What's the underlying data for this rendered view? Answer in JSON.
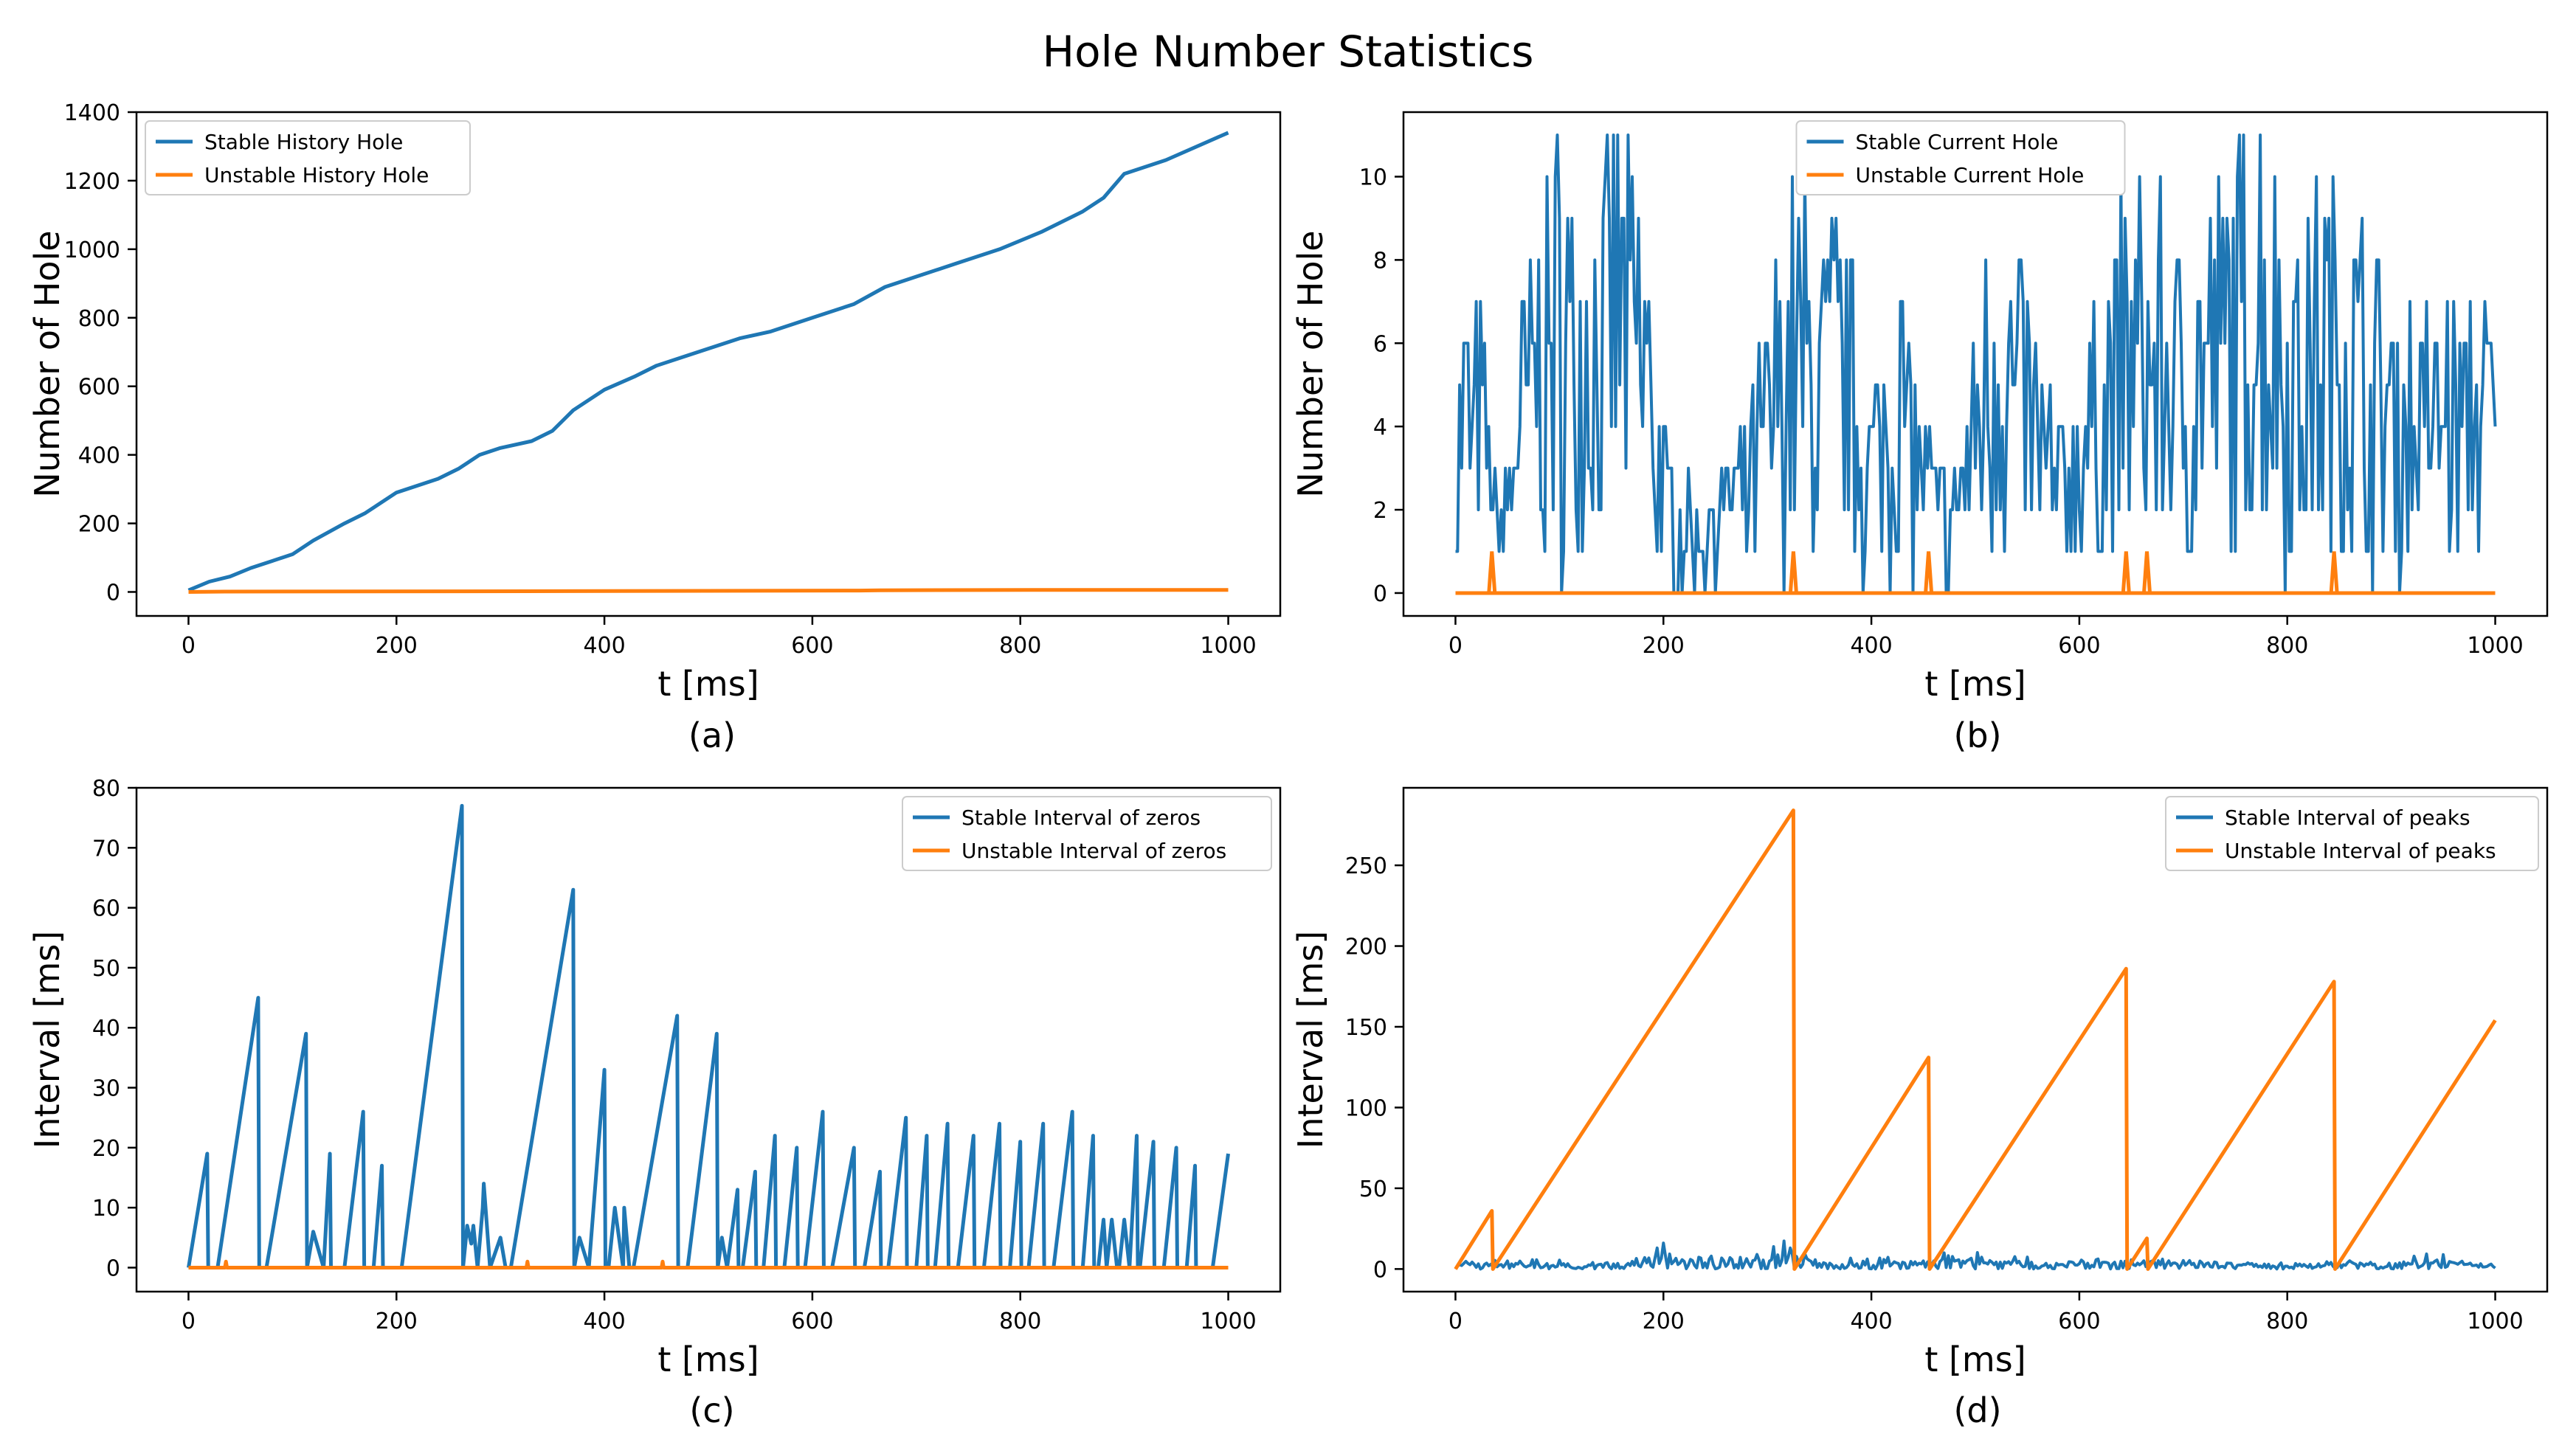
{
  "figure": {
    "title": "Hole Number Statistics"
  },
  "colors": {
    "stable": "#1f77b4",
    "unstable": "#ff7f0e",
    "axis": "#000000",
    "background": "#ffffff"
  },
  "chart_data": [
    {
      "id": "a",
      "type": "line",
      "panel_label": "(a)",
      "xlabel": "t [ms]",
      "ylabel": "Number of Hole",
      "xlim": [
        -50,
        1050
      ],
      "ylim": [
        -70,
        1400
      ],
      "xticks": [
        0,
        200,
        400,
        600,
        800,
        1000
      ],
      "yticks": [
        0,
        200,
        400,
        600,
        800,
        1000,
        1200,
        1400
      ],
      "grid": false,
      "legend_position": "upper-left",
      "series": [
        {
          "name": "Stable History Hole",
          "color": "#1f77b4",
          "x": [
            0,
            20,
            40,
            60,
            80,
            100,
            120,
            150,
            170,
            200,
            240,
            260,
            280,
            300,
            330,
            350,
            370,
            400,
            430,
            450,
            480,
            500,
            530,
            560,
            600,
            640,
            670,
            700,
            740,
            780,
            820,
            860,
            880,
            900,
            940,
            1000
          ],
          "y": [
            5,
            30,
            45,
            70,
            90,
            110,
            150,
            200,
            230,
            290,
            330,
            360,
            400,
            420,
            440,
            470,
            530,
            590,
            630,
            660,
            690,
            710,
            740,
            760,
            800,
            840,
            890,
            920,
            960,
            1000,
            1050,
            1110,
            1150,
            1220,
            1260,
            1340
          ]
        },
        {
          "name": "Unstable History Hole",
          "color": "#ff7f0e",
          "x": [
            0,
            35,
            325,
            455,
            645,
            665,
            845,
            1000
          ],
          "y": [
            0,
            1,
            2,
            3,
            4,
            5,
            6,
            6
          ]
        }
      ]
    },
    {
      "id": "b",
      "type": "line",
      "panel_label": "(b)",
      "xlabel": "t [ms]",
      "ylabel": "Number of Hole",
      "xlim": [
        -50,
        1050
      ],
      "ylim": [
        -0.55,
        11.55
      ],
      "xticks": [
        0,
        200,
        400,
        600,
        800,
        1000
      ],
      "yticks": [
        0,
        2,
        4,
        6,
        8,
        10
      ],
      "grid": false,
      "legend_position": "upper-center",
      "series": [
        {
          "name": "Stable Current Hole",
          "color": "#1f77b4",
          "dense": true,
          "noise_seed": 7,
          "x": [
            0,
            5,
            10,
            15,
            25,
            40,
            60,
            90,
            100,
            110,
            130,
            155,
            175,
            200,
            230,
            280,
            325,
            345,
            370,
            400,
            430,
            450,
            480,
            520,
            540,
            580,
            600,
            650,
            700,
            740,
            775,
            800,
            850,
            900,
            960,
            1000
          ],
          "y": [
            3,
            6,
            7,
            5,
            6,
            1,
            5,
            9,
            10,
            9,
            9,
            10,
            10,
            3,
            1,
            3,
            9,
            8,
            8,
            4,
            7,
            3,
            2,
            9,
            7,
            3,
            4,
            9,
            7,
            9,
            11,
            8,
            9,
            6,
            6,
            6
          ]
        },
        {
          "name": "Unstable Current Hole",
          "color": "#ff7f0e",
          "spikes": [
            35,
            325,
            455,
            645,
            665,
            845
          ],
          "x": [
            0,
            1000
          ],
          "y": [
            0,
            0
          ]
        }
      ]
    },
    {
      "id": "c",
      "type": "line",
      "panel_label": "(c)",
      "xlabel": "t [ms]",
      "ylabel": "Interval [ms]",
      "xlim": [
        -50,
        1050
      ],
      "ylim": [
        -4,
        80
      ],
      "xticks": [
        0,
        200,
        400,
        600,
        800,
        1000
      ],
      "yticks": [
        0,
        10,
        20,
        30,
        40,
        50,
        60,
        70,
        80
      ],
      "grid": false,
      "legend_position": "upper-right",
      "series": [
        {
          "name": "Stable Interval of zeros",
          "color": "#1f77b4",
          "x": [
            0,
            18,
            19,
            25,
            28,
            67,
            68,
            72,
            75,
            113,
            114,
            120,
            130,
            136,
            137,
            142,
            150,
            168,
            169,
            172,
            178,
            186,
            187,
            190,
            205,
            263,
            264,
            268,
            272,
            274,
            278,
            283,
            284,
            290,
            300,
            305,
            310,
            370,
            371,
            376,
            385,
            400,
            401,
            404,
            410,
            418,
            419,
            424,
            428,
            470,
            471,
            474,
            480,
            508,
            509,
            513,
            518,
            528,
            529,
            533,
            545,
            546,
            549,
            553,
            564,
            565,
            569,
            573,
            585,
            586,
            589,
            593,
            610,
            611,
            614,
            619,
            640,
            641,
            644,
            650,
            665,
            666,
            669,
            673,
            690,
            691,
            694,
            700,
            710,
            711,
            714,
            718,
            730,
            731,
            735,
            740,
            755,
            756,
            760,
            765,
            780,
            781,
            785,
            790,
            800,
            801,
            804,
            808,
            822,
            823,
            827,
            832,
            850,
            851,
            855,
            860,
            870,
            871,
            875,
            880,
            883,
            888,
            893,
            895,
            900,
            905,
            912,
            913,
            915,
            918,
            928,
            929,
            933,
            938,
            950,
            951,
            955,
            960,
            968,
            969,
            972,
            975,
            978,
            981,
            985,
            1000
          ],
          "y": [
            0,
            19,
            0,
            0,
            0,
            45,
            0,
            0,
            0,
            39,
            0,
            6,
            0,
            19,
            0,
            0,
            0,
            26,
            0,
            0,
            0,
            17,
            0,
            0,
            0,
            77,
            0,
            7,
            4,
            7,
            0,
            10,
            14,
            0,
            5,
            0,
            0,
            63,
            0,
            5,
            0,
            33,
            0,
            0,
            10,
            0,
            10,
            0,
            0,
            42,
            0,
            0,
            0,
            39,
            0,
            5,
            0,
            13,
            0,
            0,
            16,
            0,
            0,
            0,
            22,
            0,
            0,
            0,
            20,
            0,
            0,
            0,
            26,
            0,
            0,
            0,
            20,
            0,
            0,
            0,
            16,
            0,
            0,
            0,
            25,
            0,
            0,
            0,
            22,
            0,
            0,
            0,
            24,
            0,
            0,
            0,
            22,
            0,
            0,
            0,
            24,
            0,
            0,
            0,
            21,
            0,
            0,
            0,
            24,
            0,
            0,
            0,
            26,
            0,
            0,
            0,
            22,
            0,
            0,
            8,
            0,
            8,
            0,
            0,
            8,
            0,
            22,
            0,
            0,
            5,
            21,
            0,
            0,
            0,
            20,
            0,
            0,
            0,
            17,
            0,
            0,
            0,
            0,
            0,
            0,
            19
          ]
        },
        {
          "name": "Unstable Interval of zeros",
          "color": "#ff7f0e",
          "x": [
            0,
            35,
            36,
            37,
            325,
            326,
            327,
            455,
            456,
            457,
            1000
          ],
          "y": [
            0,
            0,
            1,
            0,
            0,
            1,
            0,
            0,
            1,
            0,
            0
          ]
        }
      ]
    },
    {
      "id": "d",
      "type": "line",
      "panel_label": "(d)",
      "xlabel": "t [ms]",
      "ylabel": "Interval [ms]",
      "xlim": [
        -50,
        1050
      ],
      "ylim": [
        -14,
        298
      ],
      "xticks": [
        0,
        200,
        400,
        600,
        800,
        1000
      ],
      "yticks": [
        0,
        50,
        100,
        150,
        200,
        250
      ],
      "grid": false,
      "legend_position": "upper-right",
      "series": [
        {
          "name": "Stable Interval of peaks",
          "color": "#1f77b4",
          "dense": true,
          "noise_seed": 13,
          "x": [
            0,
            10,
            20,
            40,
            60,
            100,
            150,
            200,
            250,
            300,
            320,
            350,
            400,
            450,
            470,
            480,
            500,
            550,
            600,
            650,
            700,
            750,
            800,
            850,
            900,
            950,
            1000
          ],
          "y": [
            2,
            6,
            3,
            8,
            5,
            4,
            6,
            12,
            10,
            8,
            16,
            6,
            5,
            7,
            15,
            10,
            8,
            6,
            7,
            6,
            7,
            5,
            5,
            6,
            5,
            8,
            3
          ]
        },
        {
          "name": "Unstable Interval of peaks",
          "color": "#ff7f0e",
          "x": [
            0,
            35,
            36,
            325,
            326,
            455,
            456,
            645,
            646,
            665,
            666,
            845,
            846,
            1000
          ],
          "y": [
            0,
            36,
            0,
            284,
            0,
            131,
            0,
            186,
            0,
            19,
            0,
            178,
            0,
            154
          ]
        }
      ]
    }
  ]
}
